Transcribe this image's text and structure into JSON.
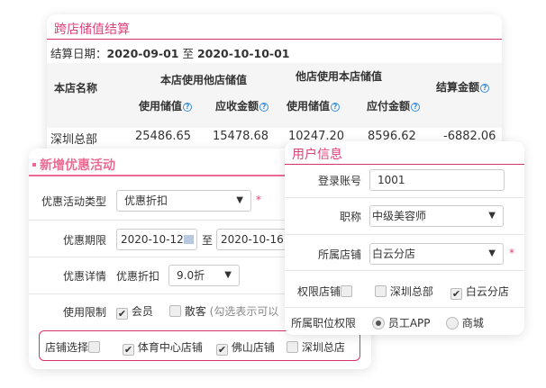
{
  "settlement": {
    "title": "跨店储值结算",
    "date_label": "结算日期：",
    "date_from": "2020-09-01",
    "date_sep": "至",
    "date_to": "2020-10-10-01",
    "headers": {
      "store_name": "本店名称",
      "group1": "本店使用他店储值",
      "group2": "他店使用本店储值",
      "settle": "结算金额",
      "use_value1": "使用储值",
      "receivable": "应收金额",
      "use_value2": "使用储值",
      "payable": "应付金额"
    },
    "rows": [
      {
        "store": "深圳总部",
        "use1": "25486.65",
        "receivable": "15478.68",
        "use2": "10247.20",
        "payable": "8596.62",
        "settle": "-6882.06"
      }
    ]
  },
  "promo": {
    "title": "新增优惠活动",
    "type_label": "优惠活动类型",
    "type_value": "优惠折扣",
    "period_label": "优惠期限",
    "period_from": "2020-10-12",
    "period_sep": "至",
    "period_to": "2020-10-16",
    "detail_label": "优惠详情",
    "detail_sub": "优惠折扣",
    "detail_value": "9.0折",
    "limit_label": "使用限制",
    "limit_member": "会员",
    "limit_walkin": "散客",
    "limit_hint": "(勾选表示可以",
    "store_label": "店铺选择",
    "stores": [
      {
        "name": "体育中心店铺",
        "checked": true
      },
      {
        "name": "佛山店铺",
        "checked": true
      },
      {
        "name": "深圳总店",
        "checked": false
      }
    ]
  },
  "user": {
    "title": "用户信息",
    "account_label": "登录账号",
    "account_value": "1001",
    "title_label": "职称",
    "title_value": "中级美容师",
    "store_label": "所属店铺",
    "store_value": "白云分店",
    "perm_label": "权限店铺",
    "perm_stores": [
      {
        "name": "深圳总部",
        "checked": false
      },
      {
        "name": "白云分店",
        "checked": true
      }
    ],
    "role_label": "所属职位权限",
    "roles": [
      {
        "name": "员工APP",
        "checked": true
      },
      {
        "name": "商城",
        "checked": false
      }
    ]
  },
  "colors": {
    "accent": "#e0407a"
  }
}
